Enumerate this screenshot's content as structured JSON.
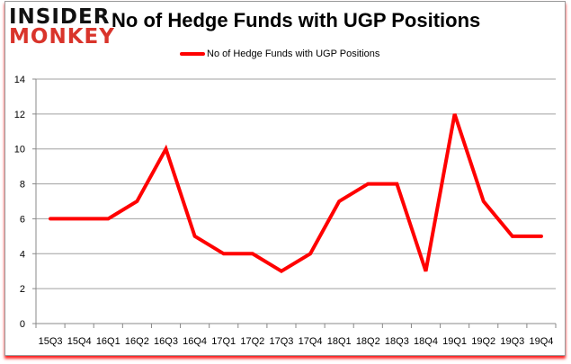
{
  "logo": {
    "line1": "INSIDER",
    "line2": "MONKEY"
  },
  "chart_data": {
    "type": "line",
    "title": "No of Hedge Funds with UGP Positions",
    "categories": [
      "15Q3",
      "15Q4",
      "16Q1",
      "16Q2",
      "16Q3",
      "16Q4",
      "17Q1",
      "17Q2",
      "17Q3",
      "17Q4",
      "18Q1",
      "18Q2",
      "18Q3",
      "18Q4",
      "19Q1",
      "19Q2",
      "19Q3",
      "19Q4"
    ],
    "series": [
      {
        "name": "No of Hedge Funds with UGP Positions",
        "color": "#ff0000",
        "values": [
          6,
          6,
          6,
          7,
          10,
          5,
          4,
          4,
          3,
          4,
          7,
          8,
          8,
          3,
          12,
          7,
          5,
          5
        ]
      }
    ],
    "ylim": [
      0,
      14
    ],
    "yticks": [
      0,
      2,
      4,
      6,
      8,
      10,
      12,
      14
    ],
    "grid": true,
    "legend": "top-center"
  }
}
